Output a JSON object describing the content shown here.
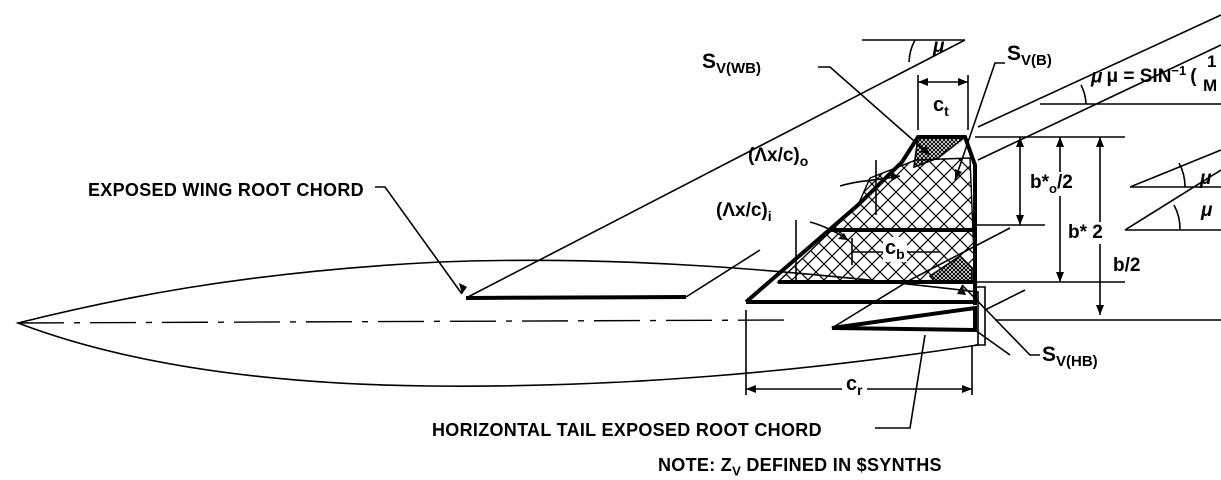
{
  "labels": {
    "exposed_wing_root_chord": "EXPOSED WING ROOT CHORD",
    "horizontal_tail_root_chord": "HORIZONTAL TAIL EXPOSED ROOT CHORD",
    "note_prefix": "NOTE: Z",
    "note_sub": "V",
    "note_suffix": " DEFINED IN $SYNTHS",
    "sv_wb_main": "S",
    "sv_wb_sub": "V(WB)",
    "sv_b_main": "S",
    "sv_b_sub": "V(B)",
    "sv_hb_main": "S",
    "sv_hb_sub": "V(HB)",
    "ct_main": "c",
    "ct_sub": "t",
    "cb_main": "c",
    "cb_sub": "b",
    "cr_main": "c",
    "cr_sub": "r",
    "sweep_outer": "(Λx/c)",
    "sweep_outer_sub": "o",
    "sweep_inner": "(Λx/c)",
    "sweep_inner_sub": "i",
    "b_star_o_main": "b*",
    "b_star_o_sub": "o",
    "b_star_o_tail": "/2",
    "b_star_2": "b* 2",
    "b_half": "b/2",
    "mu": "μ",
    "mu_formula": "μ = SIN",
    "mu_formula_exp": "−1",
    "mu_formula_paren": "(",
    "mu_num": "1",
    "mu_den": "M"
  }
}
